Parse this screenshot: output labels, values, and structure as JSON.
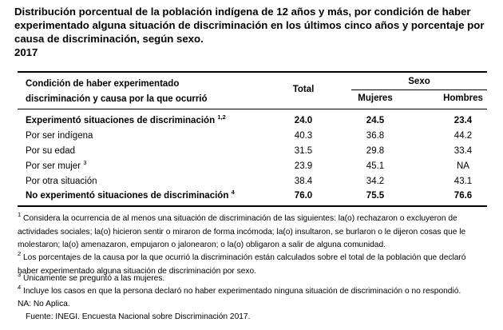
{
  "header": {
    "title": "Distribución porcentual de la población indígena de 12 años y más, por condición de haber experimentado alguna situación de discriminación en los últimos cinco años y porcentaje por causa de discriminación, según sexo.",
    "year": "2017"
  },
  "table": {
    "columns": {
      "label": "Condición de haber experimentado discriminación y causa por la que ocurrió",
      "total": "Total",
      "group": "Sexo",
      "women": "Mujeres",
      "men": "Hombres"
    },
    "rows": [
      {
        "label": "Experimentó situaciones de discriminación",
        "note": "1,2",
        "values": [
          "24.0",
          "24.5",
          "23.4"
        ]
      },
      {
        "label": "Por ser indígena",
        "values": [
          "40.3",
          "36.8",
          "44.2"
        ]
      },
      {
        "label": "Por su edad",
        "values": [
          "31.5",
          "29.8",
          "33.4"
        ]
      },
      {
        "label": "Por ser mujer",
        "note": "3",
        "values": [
          "23.9",
          "45.1",
          "NA"
        ]
      },
      {
        "label": "Por otra situación",
        "values": [
          "38.4",
          "34.2",
          "43.1"
        ]
      },
      {
        "label": "No experimentó situaciones de discriminación",
        "note": "4",
        "values": [
          "76.0",
          "75.5",
          "76.6"
        ]
      }
    ]
  },
  "footnotes": [
    {
      "mark": "1",
      "text": "Considera la ocurrencia de al menos una situación de discriminación de las siguientes: la(o) rechazaron o excluyeron de actividades sociales; la(o) hicieron sentir o miraron de forma incómoda; la(o) insultaron, se burlaron o le dijeron cosas que le molestaron; la(o) amenazaron, empujaron o jalonearon; o la(o) obligaron a salir de alguna comunidad."
    },
    {
      "mark": "2",
      "text": "Los porcentajes de la causa por la que ocurrió la discriminación están calculados sobre el total de la población que declaró haber experimentado alguna situación de discriminación por sexo."
    },
    {
      "mark": "3",
      "text": "Únicamente se preguntó a las mujeres."
    },
    {
      "mark": "4",
      "text": "Incluye los casos en que la persona declaró no haber experimentado ninguna situación de discriminación o no respondió."
    }
  ],
  "na_note": "NA: No Aplica.",
  "source": "Fuente: INEGI. Encuesta Nacional sobre Discriminación 2017."
}
